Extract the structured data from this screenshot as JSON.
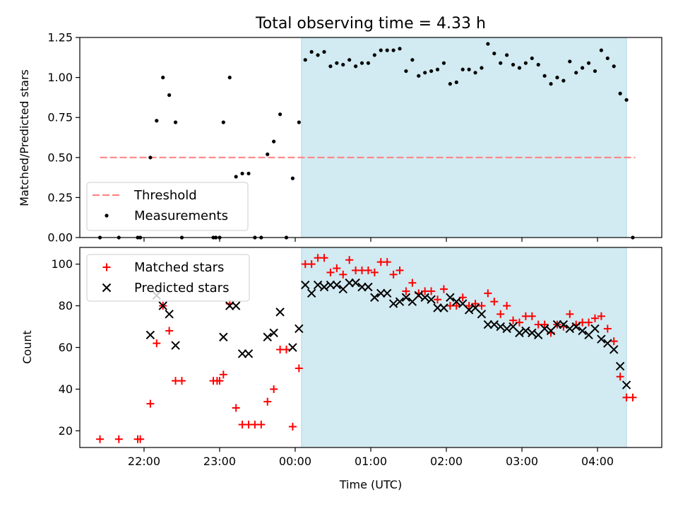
{
  "chart_data": [
    {
      "type": "scatter",
      "title": "Total observing time = 4.33 h",
      "xlabel": "",
      "ylabel": "Matched/Predicted stars",
      "ylim": [
        0,
        1.25
      ],
      "yticks": [
        "0.00",
        "0.25",
        "0.50",
        "0.75",
        "1.00",
        "1.25"
      ],
      "xlim_hours": [
        -2.85,
        4.85
      ],
      "xticks": [
        "22:00",
        "23:00",
        "00:00",
        "01:00",
        "02:00",
        "03:00",
        "04:00"
      ],
      "shaded_interval": [
        "00:05",
        "04:23"
      ],
      "shade_color": "#add8e6",
      "threshold": {
        "name": "Threshold",
        "value": 0.5,
        "x_range": [
          "21:25",
          "04:30"
        ],
        "color": "#ff7f7f"
      },
      "measurements": {
        "name": "Measurements",
        "color": "#000000",
        "points": [
          [
            "21:25",
            0.0
          ],
          [
            "21:40",
            0.0
          ],
          [
            "21:55",
            0.0
          ],
          [
            "21:57",
            0.0
          ],
          [
            "22:05",
            0.5
          ],
          [
            "22:10",
            0.73
          ],
          [
            "22:15",
            1.0
          ],
          [
            "22:20",
            0.89
          ],
          [
            "22:25",
            0.72
          ],
          [
            "22:30",
            0.0
          ],
          [
            "22:55",
            0.0
          ],
          [
            "22:57",
            0.0
          ],
          [
            "23:00",
            0.0
          ],
          [
            "23:03",
            0.72
          ],
          [
            "23:08",
            1.0
          ],
          [
            "23:13",
            0.38
          ],
          [
            "23:18",
            0.4
          ],
          [
            "23:23",
            0.4
          ],
          [
            "23:28",
            0.0
          ],
          [
            "23:33",
            0.0
          ],
          [
            "23:38",
            0.52
          ],
          [
            "23:43",
            0.6
          ],
          [
            "23:48",
            0.77
          ],
          [
            "23:53",
            0.0
          ],
          [
            "23:58",
            0.37
          ],
          [
            "00:03",
            0.72
          ],
          [
            "00:08",
            1.11
          ],
          [
            "00:13",
            1.16
          ],
          [
            "00:18",
            1.14
          ],
          [
            "00:23",
            1.16
          ],
          [
            "00:28",
            1.07
          ],
          [
            "00:33",
            1.09
          ],
          [
            "00:38",
            1.08
          ],
          [
            "00:43",
            1.11
          ],
          [
            "00:48",
            1.07
          ],
          [
            "00:53",
            1.09
          ],
          [
            "00:58",
            1.09
          ],
          [
            "01:03",
            1.14
          ],
          [
            "01:08",
            1.17
          ],
          [
            "01:13",
            1.17
          ],
          [
            "01:18",
            1.17
          ],
          [
            "01:23",
            1.18
          ],
          [
            "01:28",
            1.04
          ],
          [
            "01:33",
            1.11
          ],
          [
            "01:38",
            1.01
          ],
          [
            "01:43",
            1.03
          ],
          [
            "01:48",
            1.04
          ],
          [
            "01:53",
            1.05
          ],
          [
            "01:58",
            1.09
          ],
          [
            "02:03",
            0.96
          ],
          [
            "02:08",
            0.97
          ],
          [
            "02:13",
            1.05
          ],
          [
            "02:18",
            1.05
          ],
          [
            "02:23",
            1.03
          ],
          [
            "02:28",
            1.06
          ],
          [
            "02:33",
            1.21
          ],
          [
            "02:38",
            1.15
          ],
          [
            "02:43",
            1.09
          ],
          [
            "02:48",
            1.14
          ],
          [
            "02:53",
            1.08
          ],
          [
            "02:58",
            1.06
          ],
          [
            "03:03",
            1.09
          ],
          [
            "03:08",
            1.12
          ],
          [
            "03:13",
            1.08
          ],
          [
            "03:18",
            1.01
          ],
          [
            "03:23",
            0.96
          ],
          [
            "03:28",
            1.0
          ],
          [
            "03:33",
            0.98
          ],
          [
            "03:38",
            1.1
          ],
          [
            "03:43",
            1.03
          ],
          [
            "03:48",
            1.06
          ],
          [
            "03:53",
            1.09
          ],
          [
            "03:58",
            1.04
          ],
          [
            "04:03",
            1.17
          ],
          [
            "04:08",
            1.12
          ],
          [
            "04:13",
            1.07
          ],
          [
            "04:18",
            0.9
          ],
          [
            "04:23",
            0.86
          ],
          [
            "04:28",
            0.0
          ]
        ]
      },
      "legend": {
        "placement": "lower-left",
        "entries": [
          "Threshold",
          "Measurements"
        ]
      },
      "grid": false
    },
    {
      "type": "scatter",
      "title": "",
      "xlabel": "Time (UTC)",
      "ylabel": "Count",
      "ylim": [
        12,
        108
      ],
      "yticks": [
        "20",
        "40",
        "60",
        "80",
        "100"
      ],
      "xlim_hours": [
        -2.85,
        4.85
      ],
      "xticks": [
        "22:00",
        "23:00",
        "00:00",
        "01:00",
        "02:00",
        "03:00",
        "04:00"
      ],
      "shaded_interval": [
        "00:05",
        "04:23"
      ],
      "shade_color": "#add8e6",
      "series": [
        {
          "name": "Matched stars",
          "marker": "plus",
          "color": "#ff0000",
          "points": [
            [
              "21:25",
              16
            ],
            [
              "21:40",
              16
            ],
            [
              "21:55",
              16
            ],
            [
              "21:57",
              16
            ],
            [
              "22:05",
              33
            ],
            [
              "22:10",
              62
            ],
            [
              "22:15",
              80
            ],
            [
              "22:20",
              68
            ],
            [
              "22:25",
              44
            ],
            [
              "22:30",
              44
            ],
            [
              "22:55",
              44
            ],
            [
              "22:58",
              44
            ],
            [
              "23:00",
              44
            ],
            [
              "23:03",
              47
            ],
            [
              "23:08",
              81
            ],
            [
              "23:13",
              31
            ],
            [
              "23:18",
              23
            ],
            [
              "23:23",
              23
            ],
            [
              "23:28",
              23
            ],
            [
              "23:33",
              23
            ],
            [
              "23:38",
              34
            ],
            [
              "23:43",
              40
            ],
            [
              "23:48",
              59
            ],
            [
              "23:53",
              59
            ],
            [
              "23:58",
              22
            ],
            [
              "00:03",
              50
            ],
            [
              "00:08",
              100
            ],
            [
              "00:13",
              100
            ],
            [
              "00:18",
              103
            ],
            [
              "00:23",
              103
            ],
            [
              "00:28",
              96
            ],
            [
              "00:33",
              98
            ],
            [
              "00:38",
              95
            ],
            [
              "00:43",
              102
            ],
            [
              "00:48",
              97
            ],
            [
              "00:53",
              97
            ],
            [
              "00:58",
              97
            ],
            [
              "01:03",
              96
            ],
            [
              "01:08",
              101
            ],
            [
              "01:13",
              101
            ],
            [
              "01:18",
              95
            ],
            [
              "01:23",
              97
            ],
            [
              "01:28",
              87
            ],
            [
              "01:33",
              91
            ],
            [
              "01:38",
              86
            ],
            [
              "01:43",
              87
            ],
            [
              "01:48",
              87
            ],
            [
              "01:53",
              83
            ],
            [
              "01:58",
              88
            ],
            [
              "02:03",
              80
            ],
            [
              "02:08",
              80
            ],
            [
              "02:13",
              84
            ],
            [
              "02:18",
              80
            ],
            [
              "02:23",
              81
            ],
            [
              "02:28",
              80
            ],
            [
              "02:33",
              86
            ],
            [
              "02:38",
              82
            ],
            [
              "02:43",
              76
            ],
            [
              "02:48",
              80
            ],
            [
              "02:53",
              73
            ],
            [
              "02:58",
              72
            ],
            [
              "03:03",
              75
            ],
            [
              "03:08",
              75
            ],
            [
              "03:13",
              71
            ],
            [
              "03:18",
              71
            ],
            [
              "03:23",
              67
            ],
            [
              "03:28",
              71
            ],
            [
              "03:33",
              70
            ],
            [
              "03:38",
              76
            ],
            [
              "03:43",
              71
            ],
            [
              "03:48",
              72
            ],
            [
              "03:53",
              72
            ],
            [
              "03:58",
              74
            ],
            [
              "04:03",
              75
            ],
            [
              "04:08",
              69
            ],
            [
              "04:13",
              63
            ],
            [
              "04:18",
              46
            ],
            [
              "04:23",
              36
            ],
            [
              "04:28",
              36
            ]
          ]
        },
        {
          "name": "Predicted stars",
          "marker": "x",
          "color": "#000000",
          "points": [
            [
              "22:10",
              85
            ],
            [
              "22:15",
              80
            ],
            [
              "22:05",
              66
            ],
            [
              "22:20",
              76
            ],
            [
              "22:25",
              61
            ],
            [
              "23:03",
              65
            ],
            [
              "23:08",
              80
            ],
            [
              "23:13",
              80
            ],
            [
              "23:18",
              57
            ],
            [
              "23:23",
              57
            ],
            [
              "23:38",
              65
            ],
            [
              "23:43",
              67
            ],
            [
              "23:48",
              77
            ],
            [
              "23:58",
              60
            ],
            [
              "00:03",
              69
            ],
            [
              "00:08",
              90
            ],
            [
              "00:13",
              86
            ],
            [
              "00:18",
              90
            ],
            [
              "00:23",
              89
            ],
            [
              "00:28",
              90
            ],
            [
              "00:33",
              90
            ],
            [
              "00:38",
              88
            ],
            [
              "00:43",
              91
            ],
            [
              "00:48",
              91
            ],
            [
              "00:53",
              89
            ],
            [
              "00:58",
              89
            ],
            [
              "01:03",
              84
            ],
            [
              "01:08",
              86
            ],
            [
              "01:13",
              86
            ],
            [
              "01:18",
              81
            ],
            [
              "01:23",
              82
            ],
            [
              "01:28",
              84
            ],
            [
              "01:33",
              82
            ],
            [
              "01:38",
              85
            ],
            [
              "01:43",
              84
            ],
            [
              "01:48",
              83
            ],
            [
              "01:53",
              79
            ],
            [
              "01:58",
              79
            ],
            [
              "02:03",
              84
            ],
            [
              "02:08",
              82
            ],
            [
              "02:13",
              81
            ],
            [
              "02:18",
              78
            ],
            [
              "02:23",
              79
            ],
            [
              "02:28",
              76
            ],
            [
              "02:33",
              71
            ],
            [
              "02:38",
              71
            ],
            [
              "02:43",
              70
            ],
            [
              "02:48",
              69
            ],
            [
              "02:53",
              70
            ],
            [
              "02:58",
              67
            ],
            [
              "03:03",
              68
            ],
            [
              "03:08",
              67
            ],
            [
              "03:13",
              66
            ],
            [
              "03:18",
              69
            ],
            [
              "03:23",
              68
            ],
            [
              "03:28",
              71
            ],
            [
              "03:33",
              71
            ],
            [
              "03:38",
              69
            ],
            [
              "03:43",
              70
            ],
            [
              "03:48",
              68
            ],
            [
              "03:53",
              66
            ],
            [
              "03:58",
              69
            ],
            [
              "04:03",
              64
            ],
            [
              "04:08",
              62
            ],
            [
              "04:13",
              59
            ],
            [
              "04:18",
              51
            ],
            [
              "04:23",
              42
            ]
          ]
        }
      ],
      "legend": {
        "placement": "upper-left",
        "entries": [
          "Matched stars",
          "Predicted stars"
        ]
      },
      "grid": false
    }
  ]
}
